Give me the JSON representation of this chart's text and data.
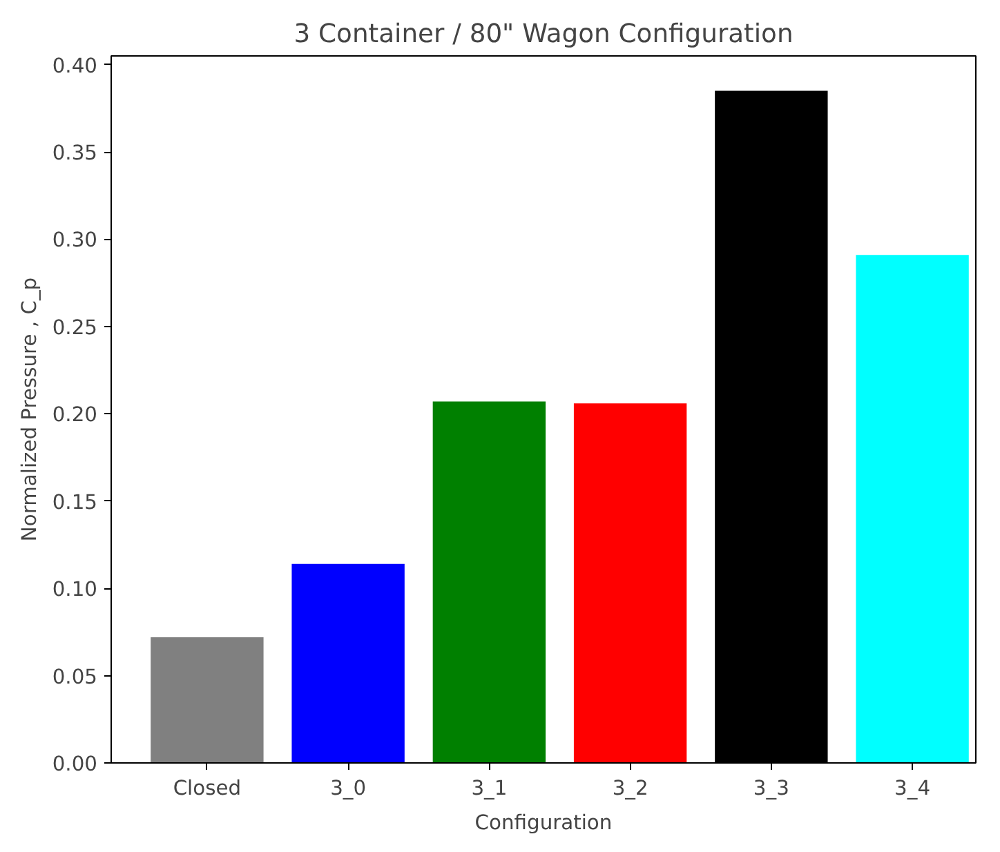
{
  "chart_data": {
    "type": "bar",
    "title": "3 Container / 80\" Wagon Configuration",
    "xlabel": "Configuration",
    "ylabel": "Normalized Pressure , C_p",
    "categories": [
      "Closed",
      "3_0",
      "3_1",
      "3_2",
      "3_3",
      "3_4"
    ],
    "values": [
      0.072,
      0.114,
      0.207,
      0.206,
      0.385,
      0.291
    ],
    "colors": [
      "#808080",
      "#0000ff",
      "#008000",
      "#ff0000",
      "#000000",
      "#00ffff"
    ],
    "ylim": [
      0,
      0.405
    ],
    "yticks": [
      {
        "value": 0,
        "label": "0.00"
      },
      {
        "value": 0.05,
        "label": "0.05"
      },
      {
        "value": 0.1,
        "label": "0.10"
      },
      {
        "value": 0.15,
        "label": "0.15"
      },
      {
        "value": 0.2,
        "label": "0.20"
      },
      {
        "value": 0.25,
        "label": "0.25"
      },
      {
        "value": 0.3,
        "label": "0.30"
      },
      {
        "value": 0.35,
        "label": "0.35"
      },
      {
        "value": 0.4,
        "label": "0.40"
      }
    ],
    "grid": false
  }
}
